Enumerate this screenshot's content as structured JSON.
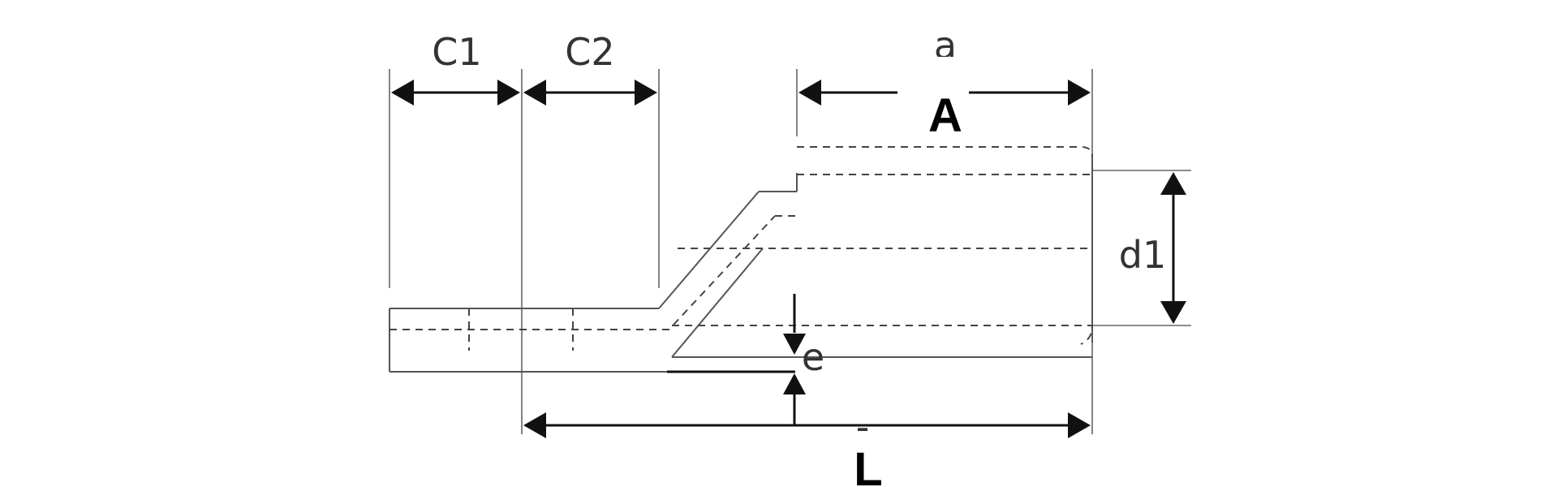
{
  "diagram": {
    "labels": {
      "c1": "C1",
      "c2": "C2",
      "a_partial": "a",
      "a_overlay": "A",
      "d1": "d1",
      "e": "e",
      "l_partial": "-",
      "l_overlay": "L"
    }
  }
}
